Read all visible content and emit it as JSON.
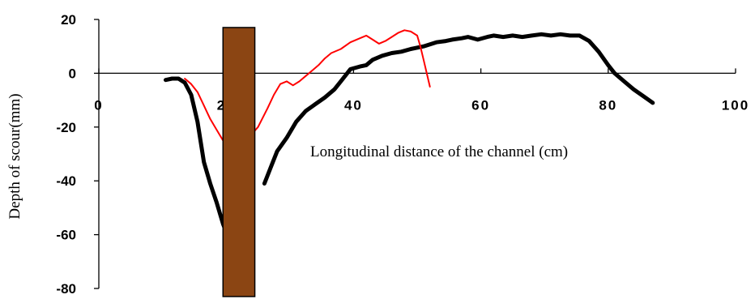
{
  "chart_data": {
    "type": "line",
    "title": "",
    "xlabel": "Longitudinal distance of the channel (cm)",
    "ylabel": "Depth of scour(mm)",
    "xlim": [
      0,
      100
    ],
    "ylim": [
      -80,
      20
    ],
    "x_ticks": [
      0,
      20,
      40,
      60,
      80,
      100
    ],
    "y_ticks": [
      20,
      0,
      -20,
      -40,
      -60,
      -80
    ],
    "grid": false,
    "legend": "none",
    "pier": {
      "x_range": [
        19.5,
        24.5
      ],
      "y_range": [
        -83,
        17
      ],
      "color": "#8B4513"
    },
    "series": [
      {
        "color": "#000000",
        "points": [
          [
            10.5,
            -2.5
          ],
          [
            11.5,
            -2
          ],
          [
            12.5,
            -2
          ],
          [
            13.5,
            -3.5
          ],
          [
            14.5,
            -8
          ],
          [
            15.5,
            -18
          ],
          [
            16.5,
            -33
          ],
          [
            17.5,
            -41
          ],
          [
            18.5,
            -48
          ],
          [
            19.5,
            -56
          ],
          [
            20,
            -59
          ],
          null,
          [
            26,
            -41
          ],
          [
            27,
            -35
          ],
          [
            28,
            -29
          ],
          [
            29.5,
            -24
          ],
          [
            31,
            -18
          ],
          [
            32.5,
            -14
          ],
          [
            34,
            -11.5
          ],
          [
            35.5,
            -9
          ],
          [
            37,
            -6
          ],
          [
            38,
            -3
          ],
          [
            39.5,
            1.5
          ],
          [
            41,
            2.5
          ],
          [
            42,
            3
          ],
          [
            43,
            5
          ],
          [
            44.5,
            6.5
          ],
          [
            46,
            7.5
          ],
          [
            47.5,
            8
          ],
          [
            49,
            9
          ],
          [
            51,
            10
          ],
          [
            53,
            11.5
          ],
          [
            54.5,
            12
          ],
          [
            55.5,
            12.5
          ],
          [
            57,
            13
          ],
          [
            58,
            13.5
          ],
          [
            59.5,
            12.5
          ],
          [
            61,
            13.5
          ],
          [
            62,
            14
          ],
          [
            63.5,
            13.5
          ],
          [
            65,
            14
          ],
          [
            66.5,
            13.5
          ],
          [
            68,
            14
          ],
          [
            69.5,
            14.5
          ],
          [
            71,
            14
          ],
          [
            72.5,
            14.5
          ],
          [
            74,
            14
          ],
          [
            75.5,
            14
          ],
          [
            77,
            12
          ],
          [
            78.5,
            8
          ],
          [
            80,
            3
          ],
          [
            81,
            0
          ],
          [
            82.5,
            -3
          ],
          [
            84,
            -6
          ],
          [
            85.5,
            -8.5
          ],
          [
            87,
            -11
          ]
        ]
      },
      {
        "color": "#ff0000",
        "points": [
          [
            13.5,
            -2
          ],
          [
            14.5,
            -4
          ],
          [
            15.5,
            -7
          ],
          [
            16.5,
            -12
          ],
          [
            17.5,
            -17
          ],
          [
            18.5,
            -21
          ],
          [
            19.5,
            -25
          ],
          null,
          [
            23.5,
            -24
          ],
          [
            25,
            -20
          ],
          [
            26.5,
            -13
          ],
          [
            27.5,
            -8
          ],
          [
            28.5,
            -4
          ],
          [
            29.5,
            -3
          ],
          [
            30.5,
            -4.5
          ],
          [
            31.5,
            -3
          ],
          [
            32.5,
            -1
          ],
          [
            33.5,
            1
          ],
          [
            34.5,
            3
          ],
          [
            35.5,
            5.5
          ],
          [
            36.5,
            7.5
          ],
          [
            38,
            9
          ],
          [
            39.5,
            11.5
          ],
          [
            41,
            13
          ],
          [
            42,
            14
          ],
          [
            43,
            12.5
          ],
          [
            44,
            11
          ],
          [
            45,
            12
          ],
          [
            46,
            13.5
          ],
          [
            47,
            15
          ],
          [
            48,
            16
          ],
          [
            49,
            15.5
          ],
          [
            50,
            14
          ],
          [
            50.5,
            10
          ],
          [
            51,
            5
          ],
          [
            51.5,
            0
          ],
          [
            52,
            -5
          ]
        ]
      }
    ]
  }
}
